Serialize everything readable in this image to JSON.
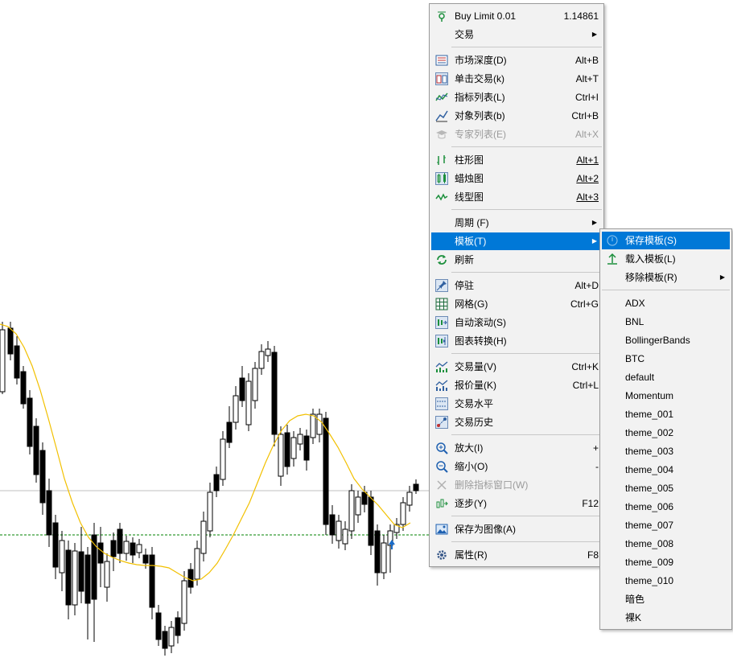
{
  "colors": {
    "menu_bg": "#f2f2f2",
    "highlight": "#0078d7",
    "candle": "#000000",
    "ma_line": "#f2c000",
    "bid_line": "#008000"
  },
  "main_menu": {
    "items": [
      {
        "label": "Buy Limit 0.01",
        "shortcut": "1.14861",
        "icon": "buy-limit-icon"
      },
      {
        "label": "交易",
        "submenu": true
      },
      {
        "label": "市场深度(D)",
        "shortcut": "Alt+B",
        "icon": "market-depth-icon"
      },
      {
        "label": "单击交易(k)",
        "shortcut": "Alt+T",
        "icon": "one-click-trading-icon"
      },
      {
        "label": "指标列表(L)",
        "shortcut": "Ctrl+I",
        "icon": "indicators-list-icon"
      },
      {
        "label": "对象列表(b)",
        "shortcut": "Ctrl+B",
        "icon": "objects-list-icon"
      },
      {
        "label": "专家列表(E)",
        "shortcut": "Alt+X",
        "icon": "experts-list-icon",
        "disabled": true
      },
      {
        "label": "柱形图",
        "shortcut": "Alt+1",
        "icon": "bar-chart-icon"
      },
      {
        "label": "蜡烛图",
        "shortcut": "Alt+2",
        "icon": "candlestick-icon"
      },
      {
        "label": "线型图",
        "shortcut": "Alt+3",
        "icon": "line-chart-icon"
      },
      {
        "label": "周期 (F)",
        "submenu": true
      },
      {
        "label": "模板(T)",
        "submenu": true,
        "highlighted": true
      },
      {
        "label": "刷新",
        "icon": "refresh-icon"
      },
      {
        "label": "停驻",
        "shortcut": "Alt+D",
        "icon": "pin-icon"
      },
      {
        "label": "网格(G)",
        "shortcut": "Ctrl+G",
        "icon": "grid-icon"
      },
      {
        "label": "自动滚动(S)",
        "icon": "autoscroll-icon"
      },
      {
        "label": "图表转换(H)",
        "icon": "chart-shift-icon"
      },
      {
        "label": "交易量(V)",
        "shortcut": "Ctrl+K",
        "icon": "volumes-icon"
      },
      {
        "label": "报价量(K)",
        "shortcut": "Ctrl+L",
        "icon": "tick-volumes-icon"
      },
      {
        "label": "交易水平",
        "icon": "trade-levels-icon"
      },
      {
        "label": "交易历史",
        "icon": "trade-history-icon"
      },
      {
        "label": "放大(I)",
        "shortcut": "+",
        "icon": "zoom-in-icon"
      },
      {
        "label": "缩小(O)",
        "shortcut": "-",
        "icon": "zoom-out-icon"
      },
      {
        "label": "删除指标窗口(W)",
        "icon": "delete-indicator-window-icon",
        "disabled": true
      },
      {
        "label": "逐步(Y)",
        "shortcut": "F12",
        "icon": "step-icon"
      },
      {
        "label": "保存为图像(A)",
        "icon": "save-image-icon"
      },
      {
        "label": "属性(R)",
        "shortcut": "F8",
        "icon": "properties-icon"
      }
    ]
  },
  "template_menu": {
    "items": [
      {
        "label": "保存模板(S)",
        "icon": "save-template-icon",
        "highlighted": true
      },
      {
        "label": "载入模板(L)",
        "icon": "load-template-icon"
      },
      {
        "label": "移除模板(R)",
        "submenu": true
      },
      {
        "label": "ADX"
      },
      {
        "label": "BNL"
      },
      {
        "label": "BollingerBands"
      },
      {
        "label": "BTC"
      },
      {
        "label": "default"
      },
      {
        "label": "Momentum"
      },
      {
        "label": "theme_001"
      },
      {
        "label": "theme_002"
      },
      {
        "label": "theme_003"
      },
      {
        "label": "theme_004"
      },
      {
        "label": "theme_005"
      },
      {
        "label": "theme_006"
      },
      {
        "label": "theme_007"
      },
      {
        "label": "theme_008"
      },
      {
        "label": "theme_009"
      },
      {
        "label": "theme_010"
      },
      {
        "label": "暗色"
      },
      {
        "label": "裸K"
      }
    ]
  }
}
